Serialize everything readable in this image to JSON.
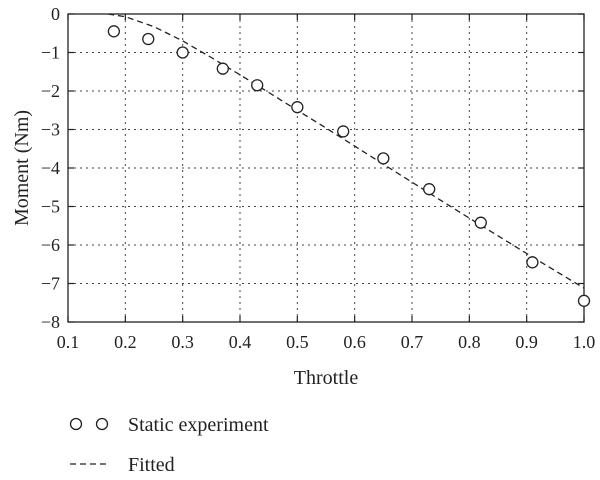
{
  "chart_data": {
    "type": "scatter",
    "title": "",
    "xlabel": "Throttle",
    "ylabel": "Moment (Nm)",
    "xlim": [
      0.1,
      1.0
    ],
    "ylim": [
      -8,
      0
    ],
    "xticks": [
      0.1,
      0.2,
      0.3,
      0.4,
      0.5,
      0.6,
      0.7,
      0.8,
      0.9,
      1.0
    ],
    "xtick_labels": [
      "0.1",
      "0.2",
      "0.3",
      "0.4",
      "0.5",
      "0.6",
      "0.7",
      "0.8",
      "0.9",
      "1.0"
    ],
    "yticks": [
      0,
      -1,
      -2,
      -3,
      -4,
      -5,
      -6,
      -7,
      -8
    ],
    "ytick_labels": [
      "0",
      "−1",
      "−2",
      "−3",
      "−4",
      "−5",
      "−6",
      "−7",
      "−8"
    ],
    "grid": true,
    "legend_position": "bottom-left, below plot",
    "series": [
      {
        "name": "Static experiment",
        "type": "scatter",
        "marker": "open-circle",
        "x": [
          0.18,
          0.24,
          0.3,
          0.37,
          0.43,
          0.5,
          0.58,
          0.65,
          0.73,
          0.82,
          0.91,
          1.0
        ],
        "y": [
          -0.45,
          -0.65,
          -1.0,
          -1.42,
          -1.85,
          -2.42,
          -3.05,
          -3.75,
          -4.55,
          -5.42,
          -6.45,
          -7.45
        ]
      },
      {
        "name": "Fitted",
        "type": "line",
        "style": "dashed",
        "x": [
          0.17,
          0.2,
          0.25,
          0.3,
          0.35,
          0.4,
          0.45,
          0.5,
          0.55,
          0.6,
          0.65,
          0.7,
          0.75,
          0.8,
          0.85,
          0.9,
          0.95,
          1.0
        ],
        "y": [
          0.0,
          -0.07,
          -0.33,
          -0.7,
          -1.13,
          -1.58,
          -2.04,
          -2.5,
          -2.96,
          -3.43,
          -3.9,
          -4.37,
          -4.84,
          -5.3,
          -5.76,
          -6.22,
          -6.67,
          -7.12
        ]
      }
    ]
  }
}
